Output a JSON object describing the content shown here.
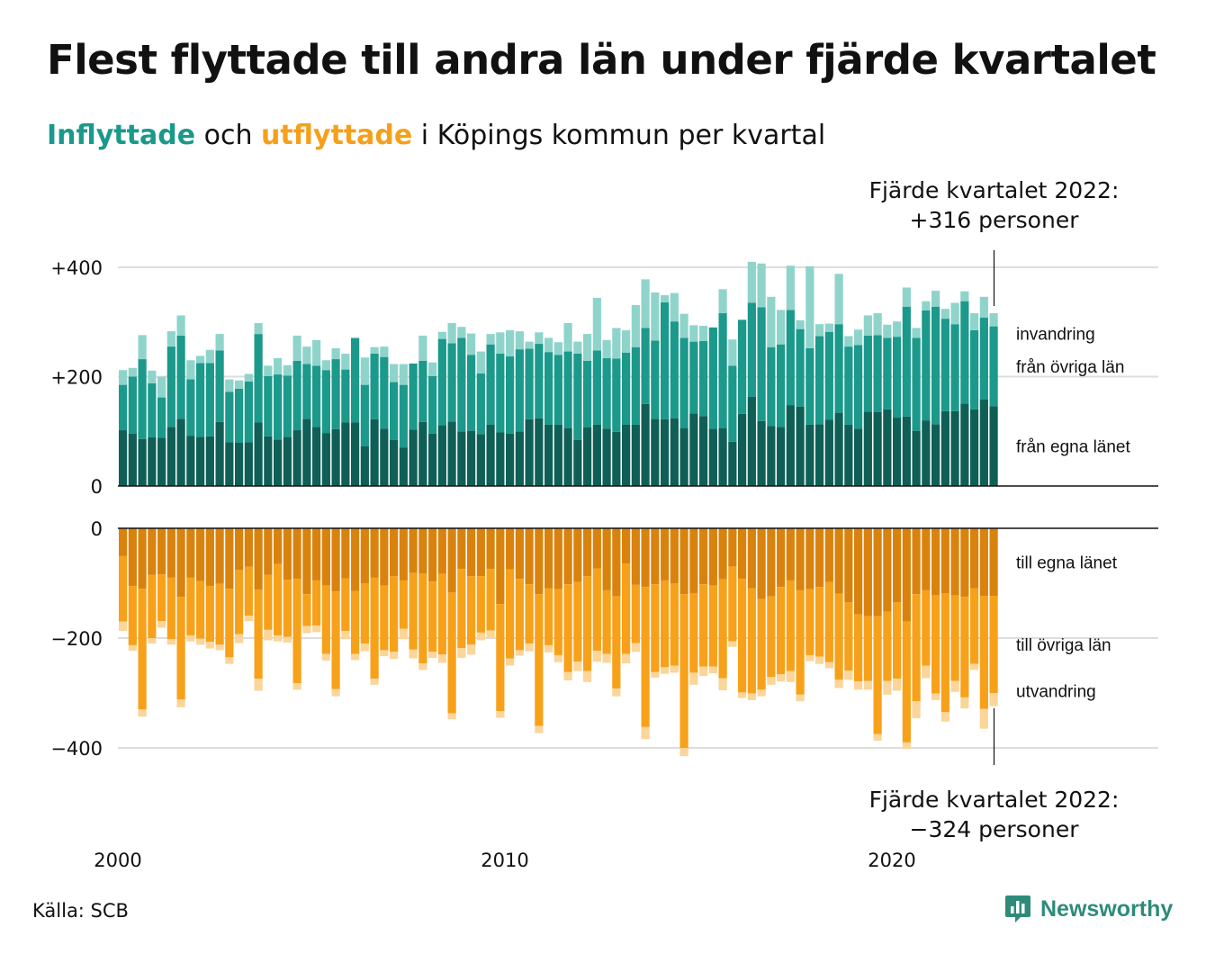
{
  "header": {
    "title": "Flest flyttade till andra län under fjärde kvartalet",
    "subtitle_in": "Inflyttade",
    "subtitle_and": " och ",
    "subtitle_out": "utflyttade",
    "subtitle_rest": " i Köpings kommun per kvartal"
  },
  "footer": {
    "source": "Källa: SCB",
    "logo": "Newsworthy"
  },
  "colors": {
    "in_own": "#0f5f56",
    "in_other": "#1b998b",
    "in_immig": "#8fd4cb",
    "out_own": "#d9830e",
    "out_other": "#f7a11a",
    "out_emig": "#fbd59a",
    "grid": "#dddddd",
    "axis": "#111111"
  },
  "chart_data": {
    "type": "bar",
    "stacked": true,
    "x_start": "2000 Q1",
    "x_ticks": [
      "2000",
      "2010",
      "2020"
    ],
    "grid": true,
    "panels": [
      {
        "name": "inflyttade",
        "ylim": [
          0,
          420
        ],
        "y_ticks": [
          {
            "value": 0,
            "label": "0"
          },
          {
            "value": 200,
            "label": "+200"
          },
          {
            "value": 400,
            "label": "+400"
          }
        ],
        "segment_labels": [
          "från egna länet",
          "från övriga län",
          "invandring"
        ],
        "annotation": [
          "Fjärde kvartalet 2022:",
          "+316 personer"
        ]
      },
      {
        "name": "utflyttade",
        "ylim": [
          -420,
          0
        ],
        "y_ticks": [
          {
            "value": 0,
            "label": "0"
          },
          {
            "value": -200,
            "label": "−200"
          },
          {
            "value": -400,
            "label": "−400"
          }
        ],
        "segment_labels": [
          "till egna länet",
          "till övriga län",
          "utvandring"
        ],
        "annotation": [
          "Fjärde kvartalet 2022:",
          "−324 personer"
        ]
      }
    ],
    "series_in": [
      {
        "name": "från egna länet",
        "values": [
          102,
          96,
          86,
          89,
          88,
          108,
          123,
          92,
          90,
          91,
          117,
          80,
          79,
          80,
          116,
          91,
          85,
          90,
          102,
          123,
          108,
          97,
          104,
          116,
          116,
          73,
          122,
          105,
          84,
          70,
          103,
          117,
          96,
          111,
          118,
          100,
          101,
          95,
          112,
          98,
          96,
          100,
          122,
          124,
          112,
          112,
          106,
          84,
          107,
          112,
          105,
          99,
          112,
          112,
          150,
          123,
          122,
          124,
          106,
          133,
          128,
          105,
          106,
          81,
          132,
          163,
          119,
          110,
          108,
          148,
          145,
          112,
          113,
          121,
          134,
          112,
          105,
          136,
          135,
          140,
          125,
          127,
          101,
          120,
          113,
          137,
          137,
          151,
          140,
          158,
          146
        ]
      },
      {
        "name": "från övriga län",
        "values": [
          83,
          104,
          146,
          99,
          74,
          147,
          152,
          103,
          135,
          134,
          131,
          92,
          99,
          111,
          162,
          110,
          119,
          112,
          127,
          100,
          112,
          115,
          128,
          97,
          154,
          112,
          120,
          131,
          106,
          115,
          121,
          112,
          105,
          158,
          143,
          171,
          139,
          111,
          147,
          144,
          141,
          150,
          129,
          136,
          133,
          128,
          140,
          158,
          122,
          136,
          129,
          134,
          132,
          142,
          139,
          143,
          214,
          177,
          165,
          131,
          137,
          185,
          210,
          139,
          172,
          172,
          208,
          144,
          151,
          174,
          142,
          140,
          161,
          161,
          162,
          143,
          153,
          139,
          141,
          131,
          148,
          201,
          170,
          201,
          215,
          169,
          159,
          187,
          145,
          150,
          146
        ]
      },
      {
        "name": "invandring",
        "values": [
          27,
          16,
          44,
          23,
          38,
          28,
          37,
          35,
          13,
          24,
          30,
          23,
          15,
          14,
          20,
          19,
          30,
          19,
          46,
          32,
          47,
          18,
          20,
          29,
          2,
          50,
          12,
          19,
          33,
          38,
          0,
          46,
          25,
          13,
          37,
          20,
          39,
          40,
          19,
          39,
          48,
          33,
          13,
          21,
          26,
          23,
          52,
          22,
          49,
          96,
          33,
          56,
          41,
          77,
          89,
          88,
          13,
          52,
          44,
          30,
          28,
          0,
          44,
          48,
          0,
          75,
          80,
          92,
          63,
          81,
          16,
          150,
          22,
          15,
          92,
          19,
          28,
          37,
          40,
          24,
          28,
          35,
          18,
          17,
          29,
          18,
          39,
          18,
          31,
          38,
          24
        ]
      }
    ],
    "series_out": [
      {
        "name": "till egna länet",
        "values": [
          -50,
          -105,
          -110,
          -85,
          -84,
          -90,
          -125,
          -90,
          -96,
          -105,
          -101,
          -110,
          -76,
          -70,
          -112,
          -85,
          -65,
          -94,
          -92,
          -120,
          -95,
          -104,
          -115,
          -91,
          -114,
          -100,
          -90,
          -104,
          -87,
          -95,
          -81,
          -82,
          -97,
          -83,
          -117,
          -74,
          -87,
          -87,
          -74,
          -138,
          -75,
          -92,
          -102,
          -120,
          -109,
          -111,
          -102,
          -98,
          -87,
          -73,
          -113,
          -124,
          -64,
          -103,
          -107,
          -102,
          -95,
          -100,
          -120,
          -118,
          -102,
          -104,
          -93,
          -70,
          -92,
          -109,
          -129,
          -124,
          -107,
          -95,
          -113,
          -111,
          -107,
          -98,
          -119,
          -135,
          -157,
          -160,
          -160,
          -152,
          -135,
          -170,
          -120,
          -113,
          -122,
          -118,
          -122,
          -125,
          -109,
          -123,
          -123
        ]
      },
      {
        "name": "till övriga län",
        "values": [
          -120,
          -108,
          -220,
          -115,
          -85,
          -112,
          -187,
          -105,
          -105,
          -102,
          -111,
          -125,
          -117,
          -89,
          -162,
          -100,
          -130,
          -104,
          -190,
          -58,
          -82,
          -125,
          -178,
          -96,
          -115,
          -110,
          -184,
          -118,
          -138,
          -88,
          -140,
          -164,
          -128,
          -147,
          -220,
          -144,
          -125,
          -103,
          -112,
          -195,
          -162,
          -130,
          -108,
          -240,
          -104,
          -120,
          -160,
          -145,
          -173,
          -150,
          -116,
          -168,
          -165,
          -106,
          -255,
          -160,
          -158,
          -150,
          -280,
          -145,
          -150,
          -148,
          -180,
          -136,
          -207,
          -192,
          -165,
          -147,
          -159,
          -165,
          -190,
          -120,
          -127,
          -146,
          -157,
          -124,
          -122,
          -118,
          -215,
          -126,
          -139,
          -220,
          -195,
          -137,
          -179,
          -217,
          -156,
          -183,
          -138,
          -206,
          -177
        ]
      },
      {
        "name": "utvandring",
        "values": [
          -17,
          -10,
          -13,
          -10,
          -12,
          -10,
          -14,
          -11,
          -11,
          -12,
          -10,
          -12,
          -16,
          -10,
          -22,
          -19,
          -11,
          -10,
          -12,
          -13,
          -12,
          -12,
          -13,
          -15,
          -11,
          -14,
          -11,
          -11,
          -13,
          -19,
          -16,
          -12,
          -11,
          -15,
          -11,
          -18,
          -18,
          -14,
          -13,
          -12,
          -13,
          -10,
          -14,
          -13,
          -13,
          -13,
          -15,
          -17,
          -20,
          -20,
          -16,
          -14,
          -17,
          -16,
          -22,
          -10,
          -12,
          -13,
          -15,
          -22,
          -17,
          -12,
          -22,
          -10,
          -10,
          -12,
          -12,
          -14,
          -13,
          -20,
          -12,
          -11,
          -13,
          -11,
          -15,
          -17,
          -15,
          -16,
          -12,
          -25,
          -22,
          -12,
          -31,
          -23,
          -12,
          -17,
          -20,
          -20,
          -11,
          -36,
          -24
        ]
      }
    ]
  }
}
